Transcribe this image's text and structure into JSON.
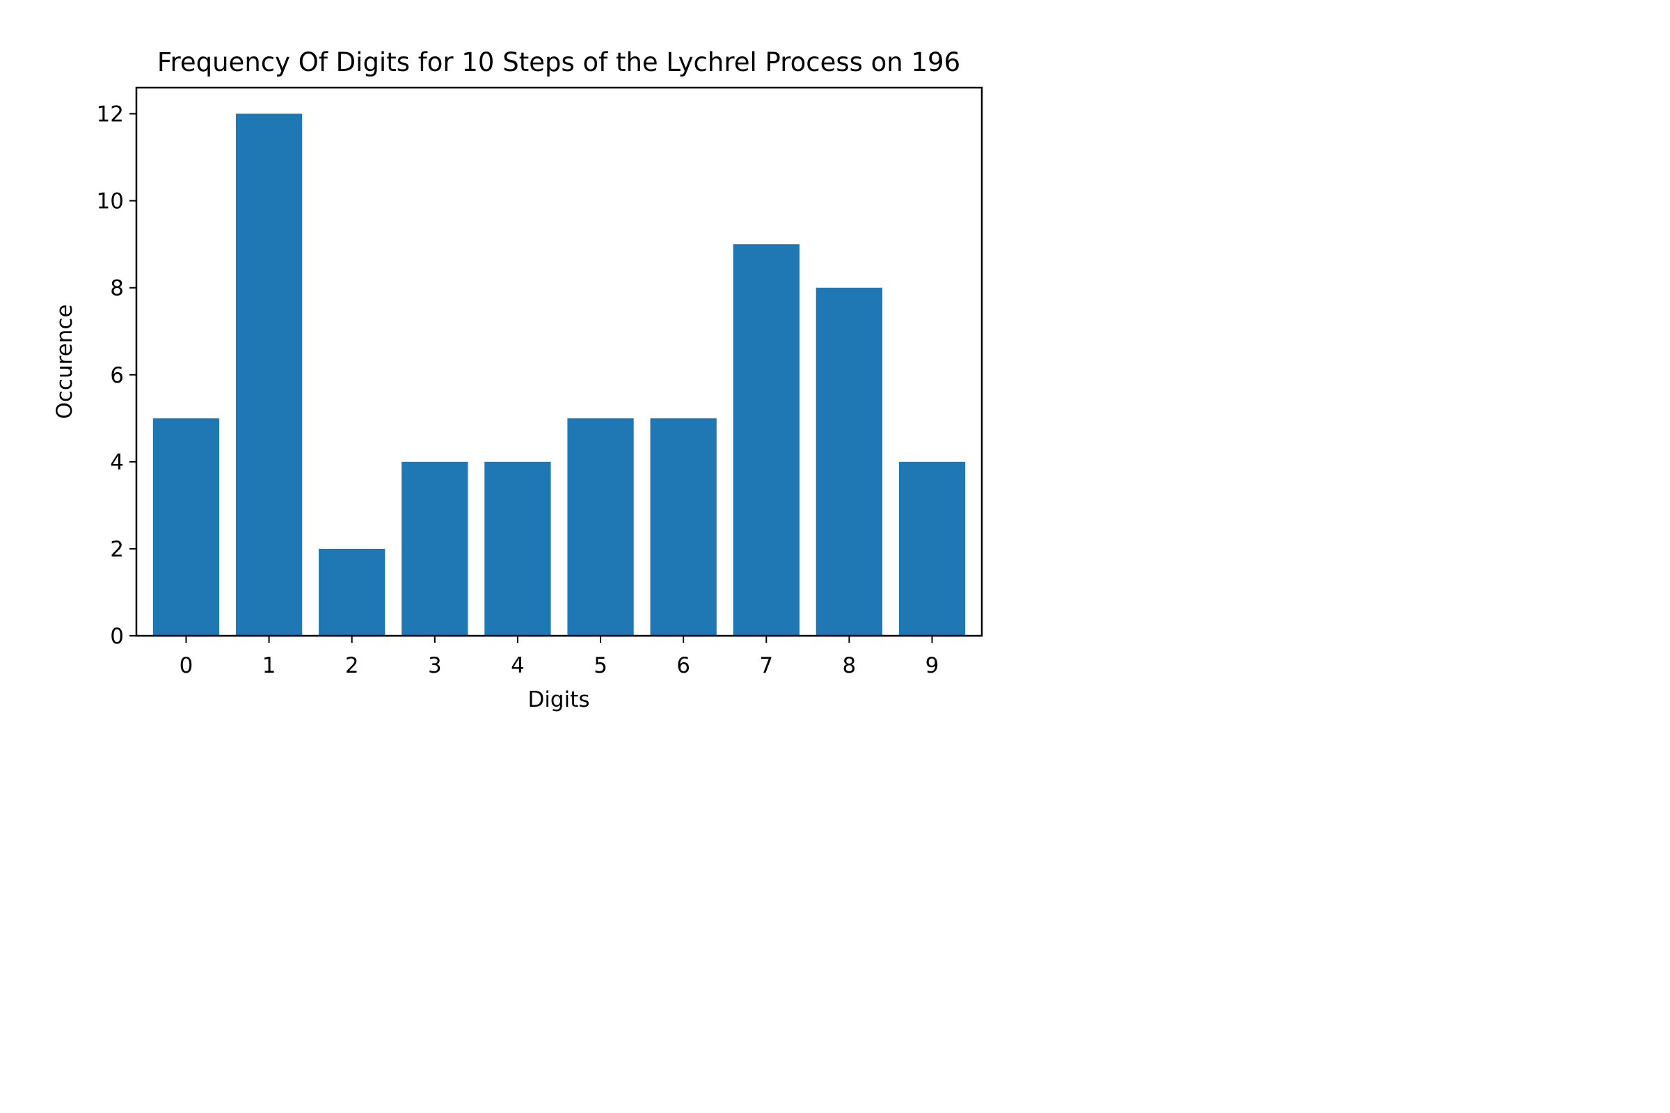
{
  "chart_data": {
    "type": "bar",
    "title": "Frequency Of Digits for 10 Steps of the Lychrel Process on 196",
    "xlabel": "Digits",
    "ylabel": "Occurence",
    "categories": [
      "0",
      "1",
      "2",
      "3",
      "4",
      "5",
      "6",
      "7",
      "8",
      "9"
    ],
    "values": [
      5,
      12,
      2,
      4,
      4,
      5,
      5,
      9,
      8,
      4
    ],
    "ylim": [
      0,
      12.6
    ],
    "yticks": [
      0,
      2,
      4,
      6,
      8,
      10,
      12
    ],
    "bar_color": "#1f77b4",
    "grid": false,
    "legend": "none"
  }
}
